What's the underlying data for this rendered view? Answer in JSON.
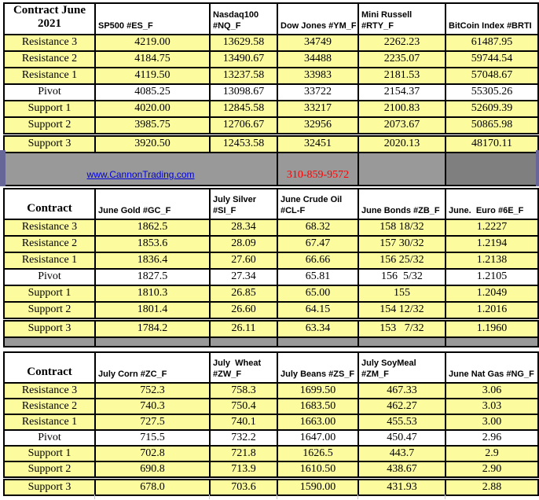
{
  "colors": {
    "row_yellow": "#FCFC9F",
    "band_gray": "#999999",
    "band_dark_gray": "#7F7F7F",
    "edge_purple": "#666699",
    "link_blue": "#0000DD",
    "phone_red": "#FF0000"
  },
  "band": {
    "link": "www.CannonTrading.com",
    "phone": "310-859-9572"
  },
  "row_labels": [
    "Resistance 3",
    "Resistance 2",
    "Resistance 1",
    "Pivot",
    "Support 1",
    "Support 2",
    "Support 3"
  ],
  "tables": [
    {
      "corner": "Contract June 2021",
      "columns": [
        {
          "label": "SP500 #ES_F",
          "values": [
            "4219.00",
            "4184.75",
            "4119.50",
            "4085.25",
            "4020.00",
            "3985.75",
            "3920.50"
          ]
        },
        {
          "label": "Nasdaq100 #NQ_F",
          "values": [
            "13629.58",
            "13490.67",
            "13237.58",
            "13098.67",
            "12845.58",
            "12706.67",
            "12453.58"
          ]
        },
        {
          "label": "Dow Jones #YM_F",
          "values": [
            "34749",
            "34488",
            "33983",
            "33722",
            "33217",
            "32956",
            "32451"
          ]
        },
        {
          "label": "Mini Russell #RTY_F",
          "values": [
            "2262.23",
            "2235.07",
            "2181.53",
            "2154.37",
            "2100.83",
            "2073.67",
            "2020.13"
          ]
        },
        {
          "label": "BitCoin Index #BRTI",
          "values": [
            "61487.95",
            "59744.54",
            "57048.67",
            "55305.26",
            "52609.39",
            "50865.98",
            "48170.11"
          ]
        }
      ]
    },
    {
      "corner": "Contract",
      "columns": [
        {
          "label": "June Gold #GC_F",
          "values": [
            "1862.5",
            "1853.6",
            "1836.4",
            "1827.5",
            "1810.3",
            "1801.4",
            "1784.2"
          ]
        },
        {
          "label": "July Silver #SI_F",
          "values": [
            "28.34",
            "28.09",
            "27.60",
            "27.34",
            "26.85",
            "26.60",
            "26.11"
          ]
        },
        {
          "label": "June Crude Oil #CL-F",
          "values": [
            "68.32",
            "67.47",
            "66.66",
            "65.81",
            "65.00",
            "64.15",
            "63.34"
          ]
        },
        {
          "label": "June Bonds #ZB_F",
          "values": [
            "158 18/32",
            "157 30/32",
            "156 25/32",
            "156  5/32",
            "155",
            "154 12/32",
            "153   7/32"
          ]
        },
        {
          "label": "June.  Euro #6E_F",
          "values": [
            "1.2227",
            "1.2194",
            "1.2138",
            "1.2105",
            "1.2049",
            "1.2016",
            "1.1960"
          ]
        }
      ]
    },
    {
      "corner": "Contract",
      "columns": [
        {
          "label": "July Corn #ZC_F",
          "values": [
            "752.3",
            "740.3",
            "727.5",
            "715.5",
            "702.8",
            "690.8",
            "678.0"
          ]
        },
        {
          "label": "July  Wheat #ZW_F",
          "values": [
            "758.3",
            "750.4",
            "740.1",
            "732.2",
            "721.8",
            "713.9",
            "703.6"
          ]
        },
        {
          "label": "July Beans #ZS_F",
          "values": [
            "1699.50",
            "1683.50",
            "1663.00",
            "1647.00",
            "1626.5",
            "1610.50",
            "1590.00"
          ]
        },
        {
          "label": "July SoyMeal #ZM_F",
          "values": [
            "467.33",
            "462.27",
            "455.53",
            "450.47",
            "443.7",
            "438.67",
            "431.93"
          ]
        },
        {
          "label": "June Nat Gas #NG_F",
          "values": [
            "3.06",
            "3.03",
            "3.00",
            "2.96",
            "2.9",
            "2.90",
            "2.88"
          ]
        }
      ]
    }
  ]
}
